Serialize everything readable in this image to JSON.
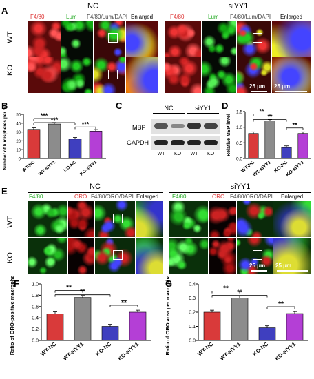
{
  "panelA": {
    "label": "A",
    "groups": [
      "NC",
      "siYY1"
    ],
    "rows": [
      "WT",
      "KO"
    ],
    "channels": [
      "F4/80",
      "Lum",
      "F4/80/Lum/DAPI",
      "Enlarged"
    ],
    "scale_small": "25 μm",
    "scale_large": "25 μm"
  },
  "panelB": {
    "label": "B",
    "chart_data": {
      "type": "bar",
      "categories": [
        "WT-NC",
        "WT-siYY1",
        "KO-NC",
        "KO-siYY1"
      ],
      "values": [
        33,
        39,
        22,
        31
      ],
      "colors": [
        "#d93a3a",
        "#8c8c8c",
        "#3f3fbf",
        "#b43fd6"
      ],
      "ylabel": "Number of lumispheres per cell",
      "ylim": [
        0,
        50
      ],
      "yticks": [
        "0",
        "10",
        "20",
        "30",
        "40",
        "50"
      ],
      "sig": [
        "***",
        "***",
        "***"
      ]
    }
  },
  "panelC": {
    "label": "C",
    "groups": [
      "NC",
      "siYY1"
    ],
    "bands": [
      "MBP",
      "GAPDH"
    ],
    "lanes": [
      "WT",
      "KO",
      "WT",
      "KO"
    ]
  },
  "panelD": {
    "label": "D",
    "chart_data": {
      "type": "bar",
      "categories": [
        "WT-NC",
        "WT-siYY1",
        "KO-NC",
        "KO-siYY1"
      ],
      "values": [
        0.8,
        1.2,
        0.35,
        0.8
      ],
      "colors": [
        "#d93a3a",
        "#8c8c8c",
        "#3f3fbf",
        "#b43fd6"
      ],
      "ylabel": "Relative MBP level",
      "ylim": [
        0,
        1.5
      ],
      "yticks": [
        "0.0",
        "0.5",
        "1.0",
        "1.5"
      ],
      "sig": [
        "**",
        "**",
        "**"
      ]
    }
  },
  "panelE": {
    "label": "E",
    "groups": [
      "NC",
      "siYY1"
    ],
    "rows": [
      "WT",
      "KO"
    ],
    "channels": [
      "F4/80",
      "ORO",
      "F4/80/ORO/DAPI",
      "Enlarged"
    ],
    "scale_small": "25 μm",
    "scale_large": "25 μm"
  },
  "panelF": {
    "label": "F",
    "chart_data": {
      "type": "bar",
      "categories": [
        "WT-NC",
        "WT-siYY1",
        "KO-NC",
        "KO-siYY1"
      ],
      "values": [
        0.47,
        0.76,
        0.25,
        0.5
      ],
      "colors": [
        "#d93a3a",
        "#8c8c8c",
        "#3f3fbf",
        "#b43fd6"
      ],
      "ylabel": "Ratio of ORO-positive macrophage",
      "ylim": [
        0,
        1.0
      ],
      "yticks": [
        "0.0",
        "0.2",
        "0.4",
        "0.6",
        "0.8",
        "1.0"
      ],
      "sig": [
        "**",
        "**",
        "**"
      ]
    }
  },
  "panelG": {
    "label": "G",
    "chart_data": {
      "type": "bar",
      "categories": [
        "WT-NC",
        "WT-siYY1",
        "KO-NC",
        "KO-siYY1"
      ],
      "values": [
        0.2,
        0.3,
        0.09,
        0.19
      ],
      "colors": [
        "#d93a3a",
        "#8c8c8c",
        "#3f3fbf",
        "#b43fd6"
      ],
      "ylabel": "Ratio of ORO area per macrophage",
      "ylim": [
        0,
        0.4
      ],
      "yticks": [
        "0.0",
        "0.1",
        "0.2",
        "0.3",
        "0.4"
      ],
      "sig": [
        "**",
        "**",
        "**"
      ]
    }
  }
}
